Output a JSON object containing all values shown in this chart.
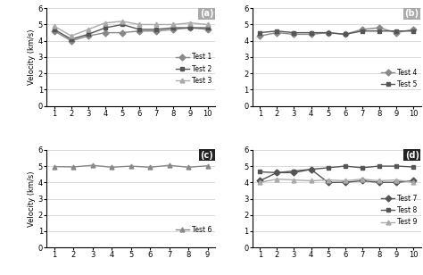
{
  "subplot_a": {
    "label": "(a)",
    "x": [
      1,
      2,
      3,
      4,
      5,
      6,
      7,
      8,
      9,
      10
    ],
    "series": {
      "Test 1": [
        4.6,
        4.0,
        4.3,
        4.5,
        4.5,
        4.6,
        4.6,
        4.7,
        4.8,
        4.7
      ],
      "Test 2": [
        4.7,
        4.1,
        4.4,
        4.8,
        5.0,
        4.7,
        4.7,
        4.8,
        4.8,
        4.8
      ],
      "Test 3": [
        4.9,
        4.3,
        4.7,
        5.1,
        5.2,
        5.0,
        5.0,
        5.0,
        5.1,
        5.0
      ]
    },
    "markers": {
      "Test 1": "D",
      "Test 2": "s",
      "Test 3": "^"
    },
    "colors": {
      "Test 1": "#888888",
      "Test 2": "#555555",
      "Test 3": "#aaaaaa"
    },
    "ylabel": "Velocity (km/s)",
    "ylim": [
      0,
      6
    ],
    "yticks": [
      0,
      1,
      2,
      3,
      4,
      5,
      6
    ],
    "xticks": [
      1,
      2,
      3,
      4,
      5,
      6,
      7,
      8,
      9,
      10
    ],
    "show_ytick_labels": true,
    "label_dark": false
  },
  "subplot_b": {
    "label": "(b)",
    "x": [
      1,
      2,
      3,
      4,
      5,
      6,
      7,
      8,
      9,
      10
    ],
    "series": {
      "Test 4": [
        4.3,
        4.5,
        4.4,
        4.4,
        4.5,
        4.4,
        4.7,
        4.8,
        4.5,
        4.7
      ],
      "Test 5": [
        4.5,
        4.6,
        4.5,
        4.5,
        4.5,
        4.4,
        4.6,
        4.6,
        4.6,
        4.6
      ]
    },
    "markers": {
      "Test 4": "D",
      "Test 5": "s"
    },
    "colors": {
      "Test 4": "#888888",
      "Test 5": "#555555"
    },
    "ylabel": "",
    "ylim": [
      0,
      6
    ],
    "yticks": [
      0,
      1,
      2,
      3,
      4,
      5,
      6
    ],
    "xticks": [
      1,
      2,
      3,
      4,
      5,
      6,
      7,
      8,
      9,
      10
    ],
    "show_ytick_labels": true,
    "label_dark": false
  },
  "subplot_c": {
    "label": "(c)",
    "x": [
      1,
      2,
      3,
      4,
      5,
      6,
      7,
      8,
      9
    ],
    "series": {
      "Test 6": [
        4.97,
        4.95,
        5.05,
        4.93,
        5.0,
        4.93,
        5.05,
        4.93,
        5.02
      ]
    },
    "markers": {
      "Test 6": "^"
    },
    "colors": {
      "Test 6": "#888888"
    },
    "ylabel": "Velocity (km/s)",
    "ylim": [
      0,
      6
    ],
    "yticks": [
      0,
      1,
      2,
      3,
      4,
      5,
      6
    ],
    "xticks": [
      1,
      2,
      3,
      4,
      5,
      6,
      7,
      8,
      9
    ],
    "show_ytick_labels": true,
    "label_dark": true
  },
  "subplot_d": {
    "label": "(d)",
    "x": [
      1,
      2,
      3,
      4,
      5,
      6,
      7,
      8,
      9,
      10
    ],
    "series": {
      "Test 7": [
        4.1,
        4.6,
        4.6,
        4.8,
        4.0,
        4.0,
        4.1,
        4.0,
        4.0,
        4.1
      ],
      "Test 8": [
        4.65,
        4.6,
        4.7,
        4.8,
        4.9,
        5.0,
        4.9,
        5.0,
        5.0,
        4.95
      ],
      "Test 9": [
        4.0,
        4.2,
        4.15,
        4.1,
        4.15,
        4.1,
        4.2,
        4.1,
        4.15,
        4.0
      ]
    },
    "markers": {
      "Test 7": "D",
      "Test 8": "s",
      "Test 9": "^"
    },
    "colors": {
      "Test 7": "#555555",
      "Test 8": "#555555",
      "Test 9": "#aaaaaa"
    },
    "ylabel": "",
    "ylim": [
      0,
      6
    ],
    "yticks": [
      0,
      1,
      2,
      3,
      4,
      5,
      6
    ],
    "xticks": [
      1,
      2,
      3,
      4,
      5,
      6,
      7,
      8,
      9,
      10
    ],
    "show_ytick_labels": true,
    "label_dark": true
  },
  "figure_bg": "#ffffff",
  "line_width": 1.0,
  "marker_size": 3.5
}
